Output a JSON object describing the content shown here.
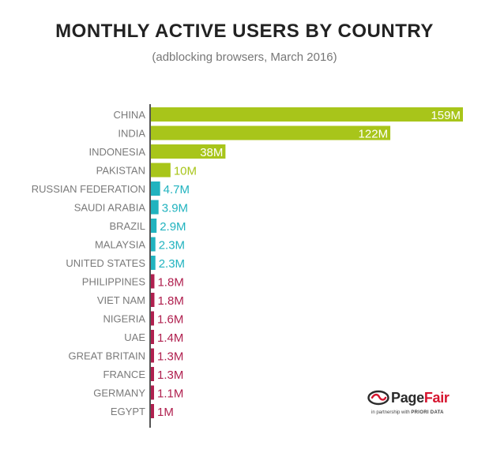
{
  "chart_data": {
    "type": "bar",
    "orientation": "horizontal",
    "title": "MONTHLY ACTIVE USERS BY COUNTRY",
    "subtitle": "(adblocking browsers, March 2016)",
    "xlabel": "",
    "ylabel": "",
    "unit": "M",
    "xlim": [
      0,
      159
    ],
    "grid": false,
    "legend": "none",
    "categories": [
      "CHINA",
      "INDIA",
      "INDONESIA",
      "PAKISTAN",
      "RUSSIAN FEDERATION",
      "SAUDI ARABIA",
      "BRAZIL",
      "MALAYSIA",
      "UNITED STATES",
      "PHILIPPINES",
      "VIET NAM",
      "NIGERIA",
      "UAE",
      "GREAT BRITAIN",
      "FRANCE",
      "GERMANY",
      "EGYPT"
    ],
    "values": [
      159,
      122,
      38,
      10,
      4.7,
      3.9,
      2.9,
      2.3,
      2.3,
      1.8,
      1.8,
      1.6,
      1.4,
      1.3,
      1.3,
      1.1,
      1
    ],
    "value_labels": [
      "159M",
      "122M",
      "38M",
      "10M",
      "4.7M",
      "3.9M",
      "2.9M",
      "2.3M",
      "2.3M",
      "1.8M",
      "1.8M",
      "1.6M",
      "1.4M",
      "1.3M",
      "1.3M",
      "1.1M",
      "1M"
    ],
    "color_groups": [
      {
        "color": "#a8c51a",
        "count": 4
      },
      {
        "color": "#21b3bf",
        "count": 5
      },
      {
        "color": "#b0204f",
        "count": 8
      }
    ],
    "label_color": "#7a7a7a",
    "axis_color": "#555555"
  },
  "brand": {
    "name_part1": "Page",
    "name_part2": "Fair",
    "tagline_prefix": "in partnership with",
    "tagline_partner": "PRIORI DATA",
    "icon": "pagefair-logo-icon"
  }
}
